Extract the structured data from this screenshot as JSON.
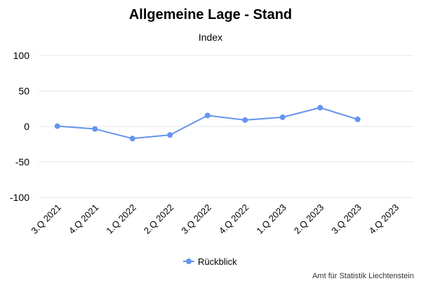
{
  "chart_data": {
    "type": "line",
    "title": "Allgemeine Lage - Stand",
    "subtitle": "Index",
    "xlabel": "",
    "ylabel": "",
    "categories": [
      "3.Q 2021",
      "4.Q 2021",
      "1.Q 2022",
      "2.Q 2022",
      "3.Q 2022",
      "4.Q 2022",
      "1.Q 2023",
      "2.Q 2023",
      "3.Q 2023",
      "4.Q 2023"
    ],
    "series": [
      {
        "name": "Rückblick",
        "color": "#6495ED",
        "values": [
          0.5,
          -3.5,
          -17,
          -12,
          15.5,
          9,
          13,
          26.5,
          10,
          null
        ]
      }
    ],
    "ylim": [
      -100,
      100
    ],
    "yticks": [
      100,
      50,
      0,
      -50,
      -100
    ],
    "ytick_labels": [
      "100",
      "50",
      "0",
      "-50",
      "-100"
    ],
    "grid": true,
    "legend_position": "bottom-center"
  },
  "credit": "Amt für Statistik Liechtenstein"
}
